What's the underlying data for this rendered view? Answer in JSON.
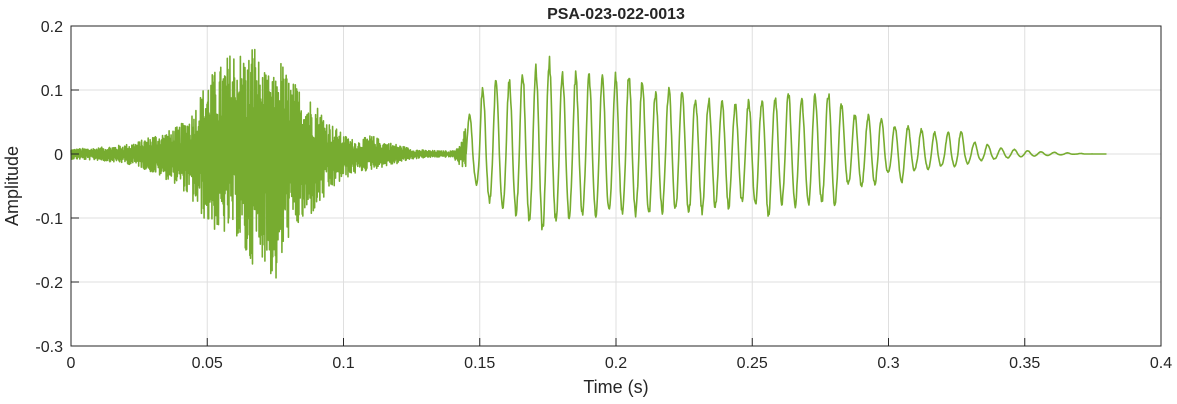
{
  "chart_data": {
    "type": "line",
    "title": "PSA-023-022-0013",
    "xlabel": "Time (s)",
    "ylabel": "Amplitude",
    "xlim": [
      0,
      0.4
    ],
    "ylim": [
      -0.3,
      0.2
    ],
    "x_ticks": [
      0,
      0.05,
      0.1,
      0.15,
      0.2,
      0.25,
      0.3,
      0.35,
      0.4
    ],
    "x_tick_labels": [
      "0",
      "0.05",
      "0.1",
      "0.15",
      "0.2",
      "0.25",
      "0.3",
      "0.35",
      "0.4"
    ],
    "y_ticks": [
      -0.3,
      -0.2,
      -0.1,
      0,
      0.1,
      0.2
    ],
    "y_tick_labels": [
      "-0.3",
      "-0.2",
      "-0.1",
      "0",
      "0.1",
      "0.2"
    ],
    "grid": true,
    "line_color": "#77AC30",
    "series": [
      {
        "x": [
          0,
          0.01,
          0.02,
          0.025,
          0.03,
          0.035,
          0.04,
          0.045,
          0.05,
          0.055,
          0.06,
          0.065,
          0.067,
          0.07,
          0.075,
          0.077,
          0.08,
          0.085,
          0.09,
          0.095,
          0.1,
          0.105,
          0.11,
          0.115,
          0.12,
          0.125,
          0.13,
          0.135,
          0.14,
          0.143,
          0.145,
          0.15,
          0.155,
          0.16,
          0.165,
          0.17,
          0.175,
          0.178,
          0.18,
          0.185,
          0.19,
          0.195,
          0.2,
          0.205,
          0.21,
          0.215,
          0.22,
          0.225,
          0.23,
          0.235,
          0.24,
          0.245,
          0.25,
          0.255,
          0.26,
          0.265,
          0.27,
          0.275,
          0.28,
          0.285,
          0.29,
          0.295,
          0.3,
          0.305,
          0.31,
          0.315,
          0.32,
          0.325,
          0.33,
          0.335,
          0.34,
          0.345,
          0.35,
          0.355,
          0.36,
          0.365,
          0.37,
          0.375,
          0.38
        ],
        "y_max": [
          0.008,
          0.01,
          0.015,
          0.02,
          0.03,
          0.035,
          0.045,
          0.07,
          0.12,
          0.14,
          0.17,
          0.155,
          0.185,
          0.13,
          0.12,
          0.15,
          0.12,
          0.1,
          0.08,
          0.05,
          0.03,
          0.02,
          0.03,
          0.02,
          0.015,
          0.008,
          0.006,
          0.005,
          0.005,
          0.015,
          0.05,
          0.11,
          0.12,
          0.12,
          0.13,
          0.14,
          0.15,
          0.17,
          0.135,
          0.13,
          0.13,
          0.13,
          0.13,
          0.13,
          0.12,
          0.1,
          0.11,
          0.1,
          0.09,
          0.09,
          0.085,
          0.08,
          0.09,
          0.09,
          0.1,
          0.1,
          0.085,
          0.105,
          0.1,
          0.07,
          0.06,
          0.07,
          0.045,
          0.05,
          0.04,
          0.04,
          0.03,
          0.045,
          0.02,
          0.018,
          0.01,
          0.008,
          0.006,
          0.004,
          0.003,
          0.002,
          0.001,
          0.0,
          0.0
        ],
        "y_min": [
          -0.008,
          -0.01,
          -0.015,
          -0.02,
          -0.03,
          -0.04,
          -0.05,
          -0.08,
          -0.11,
          -0.13,
          -0.12,
          -0.18,
          -0.17,
          -0.16,
          -0.21,
          -0.18,
          -0.13,
          -0.11,
          -0.09,
          -0.06,
          -0.04,
          -0.03,
          -0.025,
          -0.02,
          -0.015,
          -0.008,
          -0.006,
          -0.005,
          -0.005,
          -0.02,
          -0.02,
          -0.06,
          -0.09,
          -0.095,
          -0.1,
          -0.12,
          -0.13,
          -0.11,
          -0.11,
          -0.1,
          -0.1,
          -0.1,
          -0.1,
          -0.1,
          -0.1,
          -0.1,
          -0.09,
          -0.1,
          -0.1,
          -0.09,
          -0.09,
          -0.08,
          -0.08,
          -0.11,
          -0.08,
          -0.085,
          -0.085,
          -0.08,
          -0.09,
          -0.05,
          -0.055,
          -0.05,
          -0.03,
          -0.05,
          -0.025,
          -0.025,
          -0.02,
          -0.02,
          -0.015,
          -0.01,
          -0.008,
          -0.006,
          -0.004,
          -0.003,
          -0.002,
          -0.001,
          0.0,
          0.0,
          0.0
        ]
      }
    ]
  }
}
